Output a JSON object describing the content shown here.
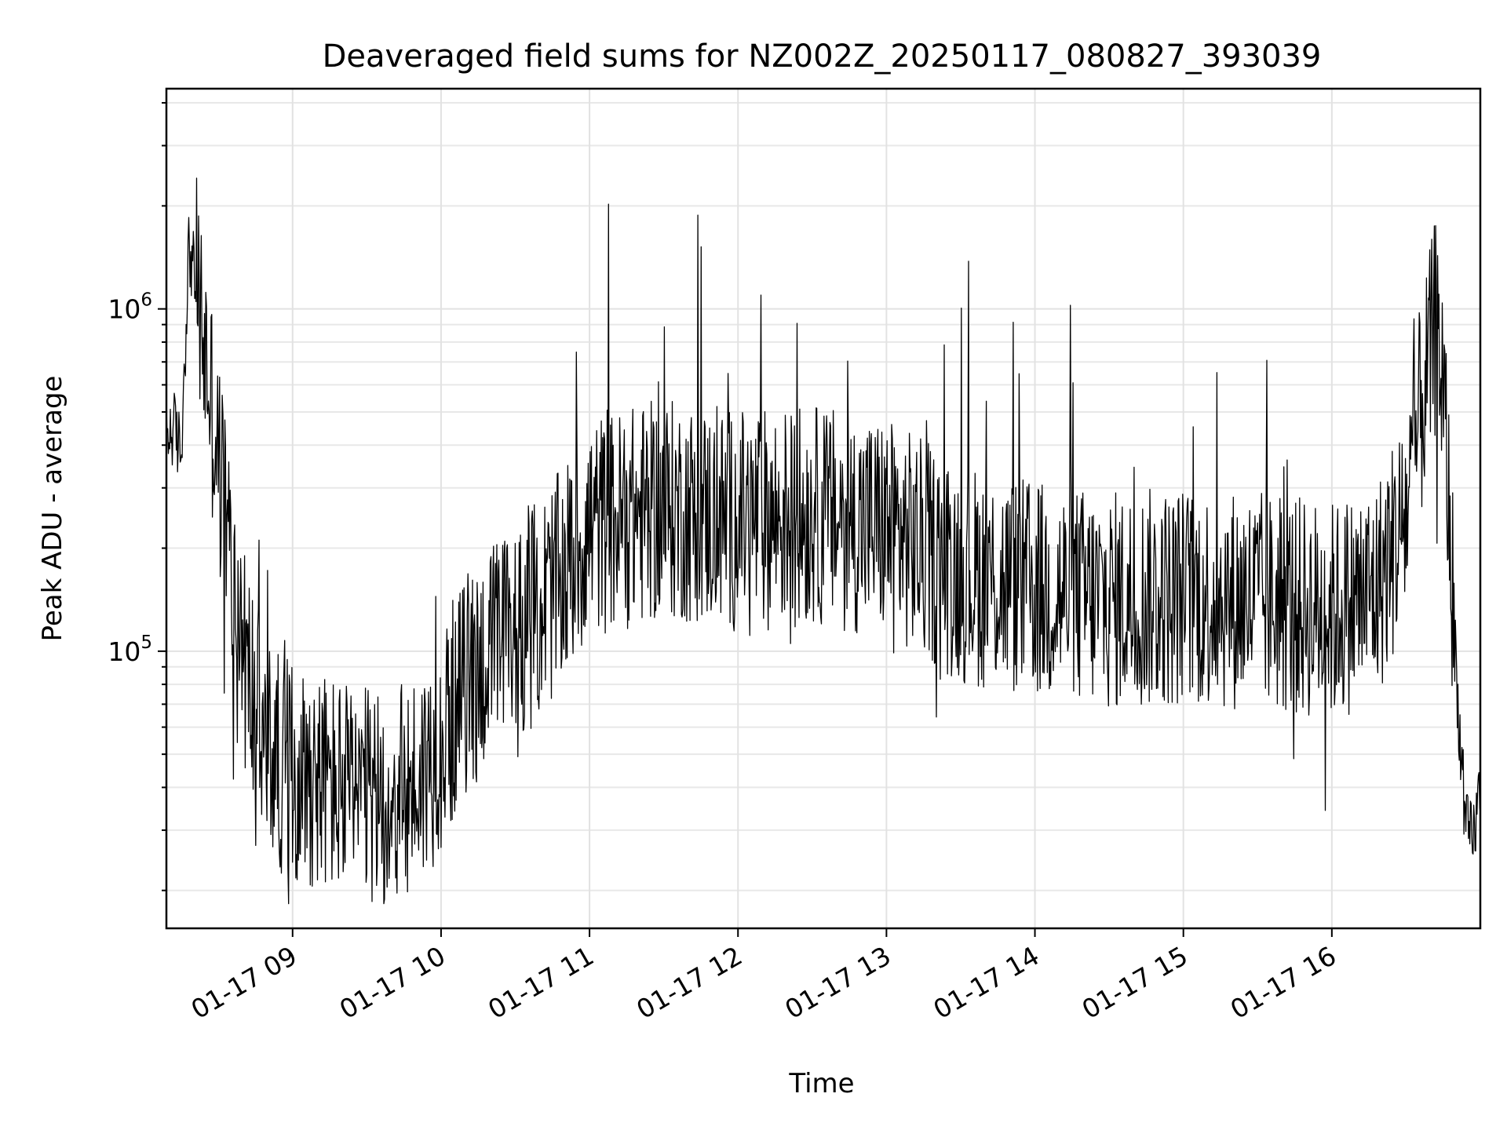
{
  "chart_data": {
    "type": "line",
    "title": "Deaveraged field sums for NZ002Z_20250117_080827_393039",
    "xlabel": "Time",
    "ylabel": "Peak ADU - average",
    "yscale": "log",
    "xlim_hours": [
      8.15,
      17.0
    ],
    "ylim": [
      15500,
      4400000
    ],
    "grid": true,
    "x_ticks": [
      {
        "hour": 9,
        "label": "01-17 09"
      },
      {
        "hour": 10,
        "label": "01-17 10"
      },
      {
        "hour": 11,
        "label": "01-17 11"
      },
      {
        "hour": 12,
        "label": "01-17 12"
      },
      {
        "hour": 13,
        "label": "01-17 13"
      },
      {
        "hour": 14,
        "label": "01-17 14"
      },
      {
        "hour": 15,
        "label": "01-17 15"
      },
      {
        "hour": 16,
        "label": "01-17 16"
      }
    ],
    "y_ticks": [
      {
        "value": 100000,
        "base": "10",
        "exp": "5"
      },
      {
        "value": 1000000,
        "base": "10",
        "exp": "6"
      }
    ],
    "series": [
      {
        "color": "#000000",
        "x": [
          8.15,
          8.2,
          8.25,
          8.3,
          8.35,
          8.4,
          8.45,
          8.5,
          8.55,
          8.6,
          8.65,
          8.7,
          8.75,
          8.8,
          8.85,
          8.9,
          9.0,
          9.1,
          9.2,
          9.3,
          9.4,
          9.5,
          9.6,
          9.7,
          9.8,
          9.9,
          10.0,
          10.1,
          10.2,
          10.3,
          10.4,
          10.5,
          10.6,
          10.7,
          10.8,
          10.9,
          11.0,
          11.5,
          12.0,
          12.5,
          13.0,
          13.5,
          14.0,
          14.5,
          15.0,
          15.5,
          16.0,
          16.3,
          16.5,
          16.6,
          16.7,
          16.75,
          16.8,
          16.85,
          16.9,
          16.95,
          17.0
        ],
        "y": [
          420000,
          450000,
          380000,
          1500000,
          1200000,
          800000,
          550000,
          350000,
          250000,
          150000,
          110000,
          85000,
          70000,
          55000,
          50000,
          48000,
          45000,
          44000,
          42000,
          40000,
          38000,
          37000,
          36000,
          37000,
          40000,
          45000,
          55000,
          70000,
          85000,
          95000,
          105000,
          115000,
          125000,
          140000,
          160000,
          190000,
          230000,
          260000,
          240000,
          250000,
          230000,
          170000,
          150000,
          140000,
          145000,
          140000,
          130000,
          150000,
          250000,
          500000,
          900000,
          600000,
          200000,
          70000,
          30000,
          28000,
          40000
        ]
      }
    ]
  }
}
